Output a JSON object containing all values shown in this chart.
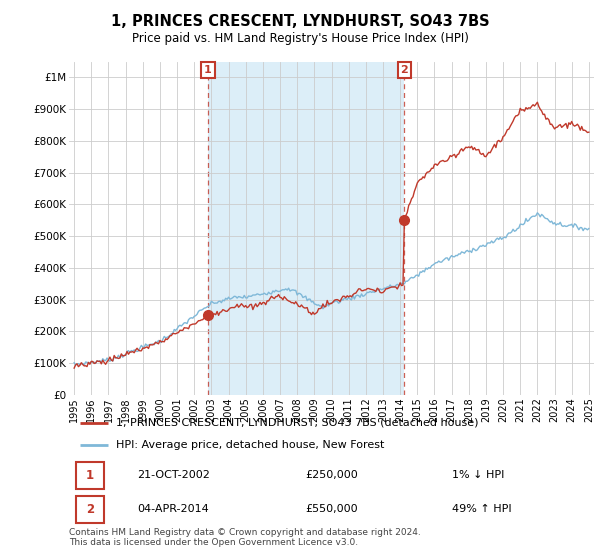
{
  "title": "1, PRINCES CRESCENT, LYNDHURST, SO43 7BS",
  "subtitle": "Price paid vs. HM Land Registry's House Price Index (HPI)",
  "ylim": [
    0,
    1050000
  ],
  "yticks": [
    0,
    100000,
    200000,
    300000,
    400000,
    500000,
    600000,
    700000,
    800000,
    900000,
    1000000
  ],
  "ytick_labels": [
    "£0",
    "£100K",
    "£200K",
    "£300K",
    "£400K",
    "£500K",
    "£600K",
    "£700K",
    "£800K",
    "£900K",
    "£1M"
  ],
  "xlim_left": 1994.7,
  "xlim_right": 2025.3,
  "sale1_date": 2002.8,
  "sale1_price": 250000,
  "sale1_label": "1",
  "sale2_date": 2014.25,
  "sale2_price": 550000,
  "sale2_label": "2",
  "hpi_color": "#7fb8d8",
  "price_color": "#c0392b",
  "shade_color": "#dceef8",
  "background_color": "#ffffff",
  "grid_color": "#cccccc",
  "legend_label_price": "1, PRINCES CRESCENT, LYNDHURST, SO43 7BS (detached house)",
  "legend_label_hpi": "HPI: Average price, detached house, New Forest",
  "annotation1_date": "21-OCT-2002",
  "annotation1_price": "£250,000",
  "annotation1_hpi": "1% ↓ HPI",
  "annotation2_date": "04-APR-2014",
  "annotation2_price": "£550,000",
  "annotation2_hpi": "49% ↑ HPI",
  "footer": "Contains HM Land Registry data © Crown copyright and database right 2024.\nThis data is licensed under the Open Government Licence v3.0."
}
